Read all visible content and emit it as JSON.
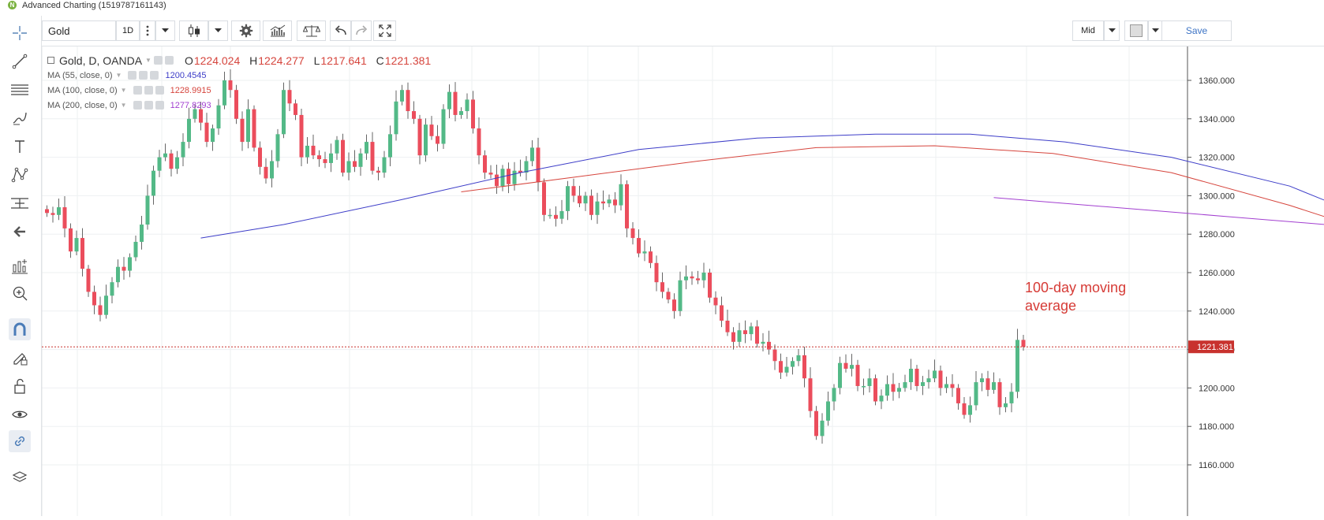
{
  "window": {
    "title": "Advanced Charting (1519787161143)",
    "logo_glyph": "N"
  },
  "toolbar": {
    "symbol": "Gold",
    "interval": "1D",
    "price_type": "Mid",
    "save_label": "Save"
  },
  "legend": {
    "symbol": "Gold, D, OANDA",
    "open_label": "O",
    "open": "1224.024",
    "high_label": "H",
    "high": "1224.277",
    "low_label": "L",
    "low": "1217.641",
    "close_label": "C",
    "close": "1221.381",
    "studies": [
      {
        "label": "MA (55, close, 0)",
        "value": "1200.4545",
        "color": "#3d3dc8"
      },
      {
        "label": "MA (100, close, 0)",
        "value": "1228.9915",
        "color": "#d6453d"
      },
      {
        "label": "MA (200, close, 0)",
        "value": "1277.8293",
        "color": "#a23fd0"
      }
    ]
  },
  "annotation": {
    "line1": "100-day moving",
    "line2": "average"
  },
  "left_tools": [
    "crosshair-icon",
    "trend-line-icon",
    "fib-retracement-icon",
    "brush-icon",
    "text-icon",
    "pattern-icon",
    "measure-icon",
    "back-arrow-icon",
    "indicators-icon",
    "zoom-in-icon",
    "magnet-icon",
    "lock-drawing-icon",
    "unlock-icon",
    "eye-icon",
    "link-icon",
    "layers-icon"
  ],
  "chart_data": {
    "type": "candlestick",
    "symbol": "Gold",
    "interval": "D",
    "source": "OANDA",
    "ylim": [
      1150,
      1375
    ],
    "yticks": [
      1160,
      1180,
      1200,
      1220,
      1240,
      1260,
      1280,
      1300,
      1320,
      1340,
      1360
    ],
    "ytick_labels": [
      "1160.000",
      "1180.000",
      "1200.000",
      "1220.000",
      "1240.000",
      "1260.000",
      "1280.000",
      "1300.000",
      "1320.000",
      "1340.000",
      "1360.000"
    ],
    "last_price": 1221.381,
    "last_price_label": "1221.381",
    "colors": {
      "up": "#53b987",
      "down": "#eb4d5c",
      "ma55": "#3d3dc8",
      "ma100": "#d6453d",
      "ma200": "#a23fd0",
      "last_line": "#c8322e"
    },
    "closes": [
      1291,
      1290,
      1294,
      1283,
      1271,
      1278,
      1262,
      1250,
      1243,
      1238,
      1248,
      1255,
      1263,
      1261,
      1268,
      1276,
      1285,
      1300,
      1313,
      1320,
      1322,
      1314,
      1320,
      1328,
      1340,
      1345,
      1338,
      1328,
      1335,
      1347,
      1360,
      1355,
      1340,
      1328,
      1345,
      1325,
      1315,
      1309,
      1318,
      1332,
      1355,
      1348,
      1342,
      1320,
      1326,
      1321,
      1319,
      1317,
      1322,
      1329,
      1312,
      1318,
      1315,
      1322,
      1328,
      1313,
      1312,
      1320,
      1332,
      1349,
      1355,
      1344,
      1340,
      1321,
      1337,
      1331,
      1327,
      1345,
      1354,
      1342,
      1344,
      1350,
      1335,
      1321,
      1312,
      1311,
      1305,
      1314,
      1306,
      1313,
      1312,
      1318,
      1325,
      1307,
      1290,
      1290,
      1288,
      1292,
      1305,
      1300,
      1296,
      1300,
      1290,
      1297,
      1296,
      1298,
      1295,
      1306,
      1283,
      1278,
      1270,
      1271,
      1265,
      1255,
      1250,
      1246,
      1240,
      1256,
      1258,
      1257,
      1256,
      1260,
      1247,
      1243,
      1235,
      1229,
      1224,
      1230,
      1228,
      1232,
      1223,
      1224,
      1220,
      1214,
      1208,
      1211,
      1214,
      1217,
      1205,
      1188,
      1175,
      1183,
      1193,
      1200,
      1213,
      1210,
      1212,
      1201,
      1201,
      1205,
      1193,
      1196,
      1202,
      1198,
      1200,
      1203,
      1210,
      1201,
      1203,
      1205,
      1209,
      1200,
      1202,
      1200,
      1192,
      1186,
      1191,
      1203,
      1205,
      1199,
      1203,
      1190,
      1192,
      1198,
      1225,
      1221.381
    ],
    "ma55": [
      [
        26,
        1278
      ],
      [
        40,
        1285
      ],
      [
        60,
        1298
      ],
      [
        80,
        1312
      ],
      [
        100,
        1324
      ],
      [
        120,
        1330
      ],
      [
        140,
        1332
      ],
      [
        156,
        1332
      ],
      [
        172,
        1328
      ],
      [
        190,
        1320
      ],
      [
        210,
        1305
      ],
      [
        230,
        1280
      ],
      [
        250,
        1255
      ],
      [
        270,
        1230
      ],
      [
        290,
        1212
      ],
      [
        305,
        1203
      ],
      [
        318,
        1200
      ]
    ],
    "ma100": [
      [
        70,
        1302
      ],
      [
        90,
        1310
      ],
      [
        110,
        1318
      ],
      [
        130,
        1325
      ],
      [
        150,
        1326
      ],
      [
        170,
        1322
      ],
      [
        190,
        1312
      ],
      [
        210,
        1295
      ],
      [
        230,
        1275
      ],
      [
        250,
        1257
      ],
      [
        270,
        1240
      ],
      [
        290,
        1230
      ],
      [
        302,
        1228
      ]
    ],
    "ma200": [
      [
        160,
        1299
      ],
      [
        180,
        1294
      ],
      [
        200,
        1289
      ],
      [
        220,
        1284
      ],
      [
        240,
        1281
      ],
      [
        256,
        1277.8
      ]
    ]
  }
}
